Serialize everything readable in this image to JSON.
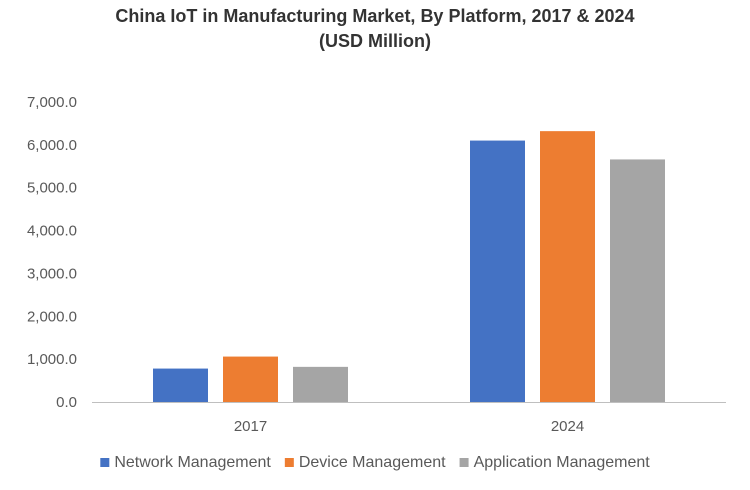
{
  "chart_data": {
    "type": "bar",
    "title": "China IoT in Manufacturing Market, By Platform, 2017 & 2024",
    "subtitle": "(USD Million)",
    "xlabel": "",
    "ylabel": "",
    "categories": [
      "2017",
      "2024"
    ],
    "series": [
      {
        "name": "Network Management",
        "color": "#4472C4",
        "values": [
          780,
          6100
        ]
      },
      {
        "name": "Device Management",
        "color": "#ED7D31",
        "values": [
          1060,
          6320
        ]
      },
      {
        "name": "Application Management",
        "color": "#A5A5A5",
        "values": [
          820,
          5660
        ]
      }
    ],
    "ylim": [
      0,
      7000
    ],
    "yticks": [
      "0.0",
      "1,000.0",
      "2,000.0",
      "3,000.0",
      "4,000.0",
      "5,000.0",
      "6,000.0",
      "7,000.0"
    ],
    "grid": false,
    "legend_position": "bottom"
  }
}
